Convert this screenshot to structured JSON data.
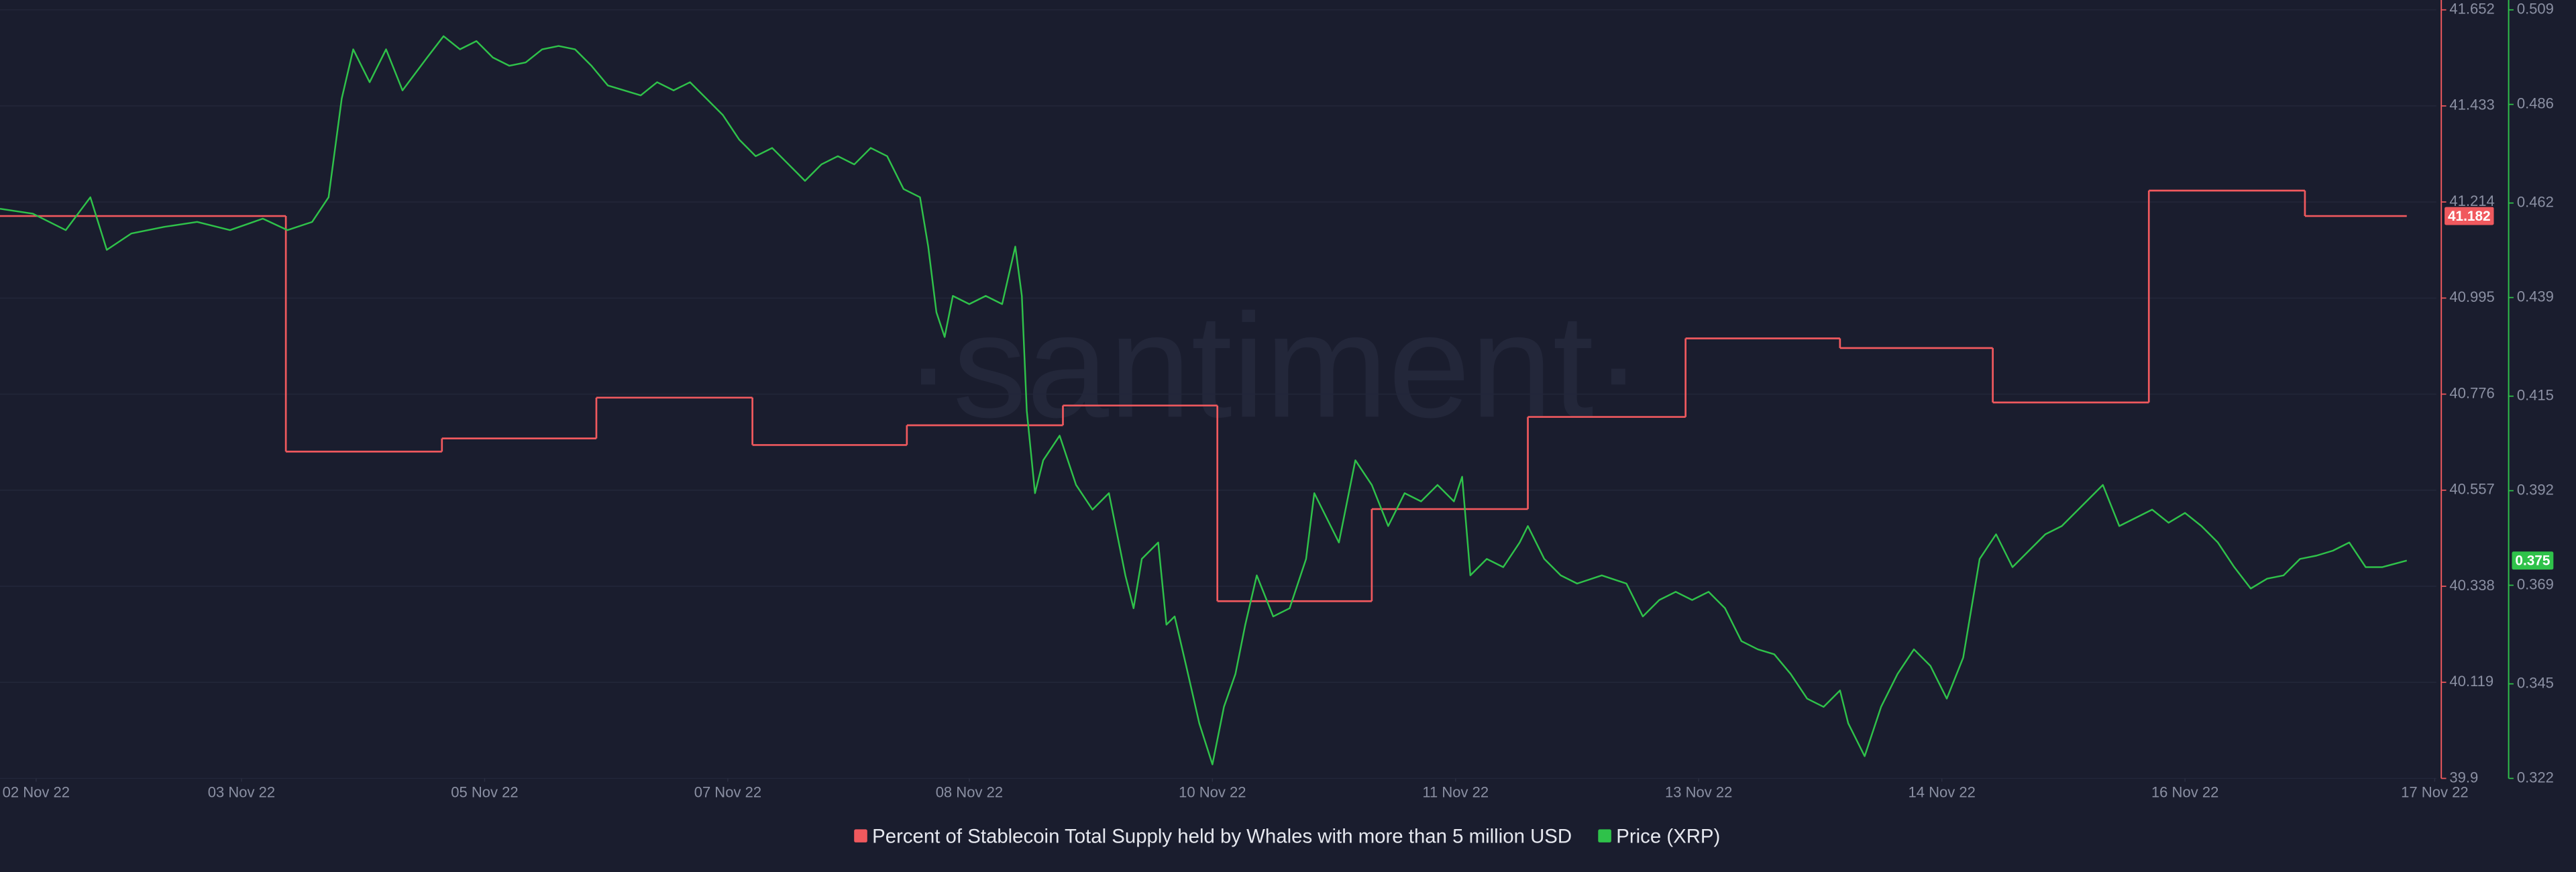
{
  "chart_data": {
    "type": "line",
    "watermark": "·santiment·",
    "xlim": [
      0,
      1483
    ],
    "xticks": [
      {
        "value": 22,
        "label": "02 Nov 22"
      },
      {
        "value": 147,
        "label": "03 Nov 22"
      },
      {
        "value": 295,
        "label": "05 Nov 22"
      },
      {
        "value": 443,
        "label": "07 Nov 22"
      },
      {
        "value": 590,
        "label": "08 Nov 22"
      },
      {
        "value": 738,
        "label": "10 Nov 22"
      },
      {
        "value": 886,
        "label": "11 Nov 22"
      },
      {
        "value": 1034,
        "label": "13 Nov 22"
      },
      {
        "value": 1182,
        "label": "14 Nov 22"
      },
      {
        "value": 1330,
        "label": "16 Nov 22"
      },
      {
        "value": 1482,
        "label": "17 Nov 22"
      }
    ],
    "ylim": [
      39.9,
      41.652
    ],
    "yticks": [
      41.652,
      41.433,
      41.214,
      40.995,
      40.776,
      40.557,
      40.338,
      40.119,
      39.9
    ],
    "y2lim": [
      0.322,
      0.509
    ],
    "y2ticks": [
      0.509,
      0.486,
      0.462,
      0.439,
      0.415,
      0.392,
      0.369,
      0.345,
      0.322
    ],
    "grid": true,
    "legend": "bottom",
    "series": [
      {
        "name": "Percent of Stablecoin Total Supply held by Whales with more than 5 million USD",
        "color": "#f0595e",
        "axis": "y",
        "step": "after",
        "x": [
          0,
          174,
          269,
          363,
          458,
          552,
          647,
          741,
          835,
          930,
          1026,
          1120,
          1213,
          1308,
          1403,
          1465
        ],
        "values": [
          41.182,
          40.645,
          40.675,
          40.768,
          40.66,
          40.705,
          40.75,
          40.304,
          40.514,
          40.724,
          40.903,
          40.881,
          40.757,
          41.24,
          41.182,
          41.182
        ]
      },
      {
        "name": "Price (XRP)",
        "color": "#2fc24a",
        "axis": "y2",
        "x": [
          0,
          20,
          40,
          55,
          65,
          80,
          100,
          120,
          140,
          160,
          175,
          190,
          200,
          208,
          215,
          225,
          235,
          245,
          260,
          270,
          280,
          290,
          300,
          310,
          320,
          330,
          340,
          350,
          360,
          370,
          380,
          390,
          400,
          410,
          420,
          430,
          440,
          450,
          460,
          470,
          480,
          490,
          500,
          510,
          520,
          530,
          540,
          550,
          560,
          565,
          570,
          575,
          580,
          590,
          600,
          610,
          618,
          622,
          625,
          630,
          635,
          645,
          655,
          665,
          675,
          685,
          690,
          695,
          705,
          710,
          715,
          722,
          730,
          738,
          745,
          752,
          758,
          765,
          775,
          785,
          795,
          800,
          805,
          815,
          825,
          835,
          845,
          855,
          865,
          875,
          885,
          890,
          895,
          905,
          915,
          925,
          930,
          940,
          950,
          960,
          975,
          990,
          1000,
          1010,
          1020,
          1030,
          1040,
          1050,
          1060,
          1070,
          1080,
          1090,
          1100,
          1110,
          1120,
          1125,
          1135,
          1145,
          1155,
          1165,
          1175,
          1185,
          1195,
          1205,
          1215,
          1225,
          1235,
          1245,
          1255,
          1270,
          1280,
          1290,
          1300,
          1310,
          1320,
          1330,
          1340,
          1350,
          1360,
          1370,
          1380,
          1390,
          1400,
          1410,
          1420,
          1430,
          1440,
          1450,
          1465
        ],
        "values": [
          0.4606,
          0.4594,
          0.4554,
          0.4634,
          0.4506,
          0.4546,
          0.4562,
          0.4574,
          0.4554,
          0.4582,
          0.4554,
          0.4574,
          0.4634,
          0.4874,
          0.4994,
          0.4914,
          0.4994,
          0.4894,
          0.4974,
          0.5026,
          0.4994,
          0.5014,
          0.4974,
          0.4954,
          0.4962,
          0.4994,
          0.5002,
          0.4994,
          0.4954,
          0.4906,
          0.4894,
          0.4882,
          0.4914,
          0.4894,
          0.4914,
          0.4874,
          0.4834,
          0.4774,
          0.4734,
          0.4754,
          0.4714,
          0.4674,
          0.4714,
          0.4734,
          0.4714,
          0.4754,
          0.4734,
          0.4654,
          0.4634,
          0.4514,
          0.4354,
          0.4294,
          0.4394,
          0.4374,
          0.4394,
          0.4374,
          0.4514,
          0.4394,
          0.4114,
          0.3914,
          0.3994,
          0.4054,
          0.3934,
          0.3874,
          0.3914,
          0.3714,
          0.3634,
          0.3754,
          0.3794,
          0.3594,
          0.3614,
          0.3494,
          0.3354,
          0.3254,
          0.3394,
          0.3474,
          0.3594,
          0.3714,
          0.3614,
          0.3634,
          0.3754,
          0.3914,
          0.3874,
          0.3794,
          0.3994,
          0.3934,
          0.3834,
          0.3914,
          0.3894,
          0.3934,
          0.3894,
          0.3954,
          0.3714,
          0.3754,
          0.3734,
          0.3794,
          0.3834,
          0.3754,
          0.3714,
          0.3694,
          0.3714,
          0.3694,
          0.3614,
          0.3654,
          0.3674,
          0.3654,
          0.3674,
          0.3634,
          0.3554,
          0.3534,
          0.3522,
          0.3474,
          0.3414,
          0.3394,
          0.3434,
          0.3354,
          0.3274,
          0.3394,
          0.3474,
          0.3534,
          0.3494,
          0.3414,
          0.3514,
          0.3754,
          0.3814,
          0.3734,
          0.3774,
          0.3814,
          0.3834,
          0.3894,
          0.3934,
          0.3834,
          0.3854,
          0.3874,
          0.3842,
          0.3866,
          0.3834,
          0.3794,
          0.3734,
          0.3682,
          0.3706,
          0.3714,
          0.3754,
          0.3762,
          0.3774,
          0.3794,
          0.3734,
          0.3734,
          0.375
        ]
      }
    ]
  }
}
